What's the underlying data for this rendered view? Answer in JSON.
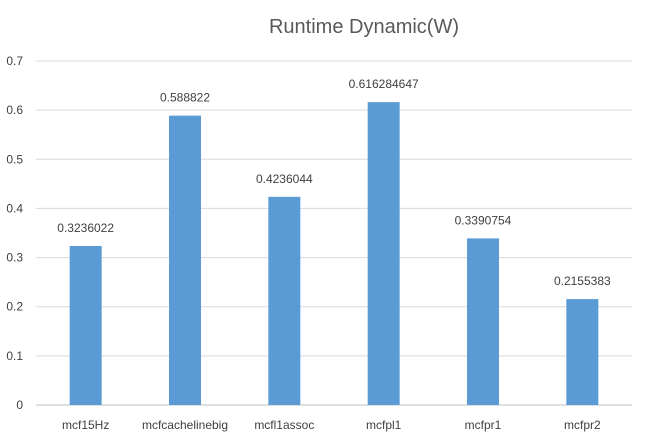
{
  "chart_data": {
    "type": "bar",
    "title": "Runtime Dynamic(W)",
    "xlabel": "",
    "ylabel": "",
    "categories": [
      "mcf15Hz",
      "mcfcachelinebig",
      "mcfl1assoc",
      "mcfpl1",
      "mcfpr1",
      "mcfpr2"
    ],
    "values": [
      0.3236022,
      0.588822,
      0.4236044,
      0.616284647,
      0.3390754,
      0.2155383
    ],
    "data_labels": [
      "0.3236022",
      "0.588822",
      "0.4236044",
      "0.616284647",
      "0.3390754",
      "0.2155383"
    ],
    "y_ticks": [
      "0",
      "0.1",
      "0.2",
      "0.3",
      "0.4",
      "0.5",
      "0.6",
      "0.7"
    ],
    "ylim": [
      0,
      0.7
    ],
    "grid": true,
    "legend": "none",
    "colors": {
      "bar": "#5B9BD5",
      "grid": "#D9D9D9",
      "axis": "#BFBFBF",
      "text": "#404040",
      "title": "#595959"
    }
  }
}
